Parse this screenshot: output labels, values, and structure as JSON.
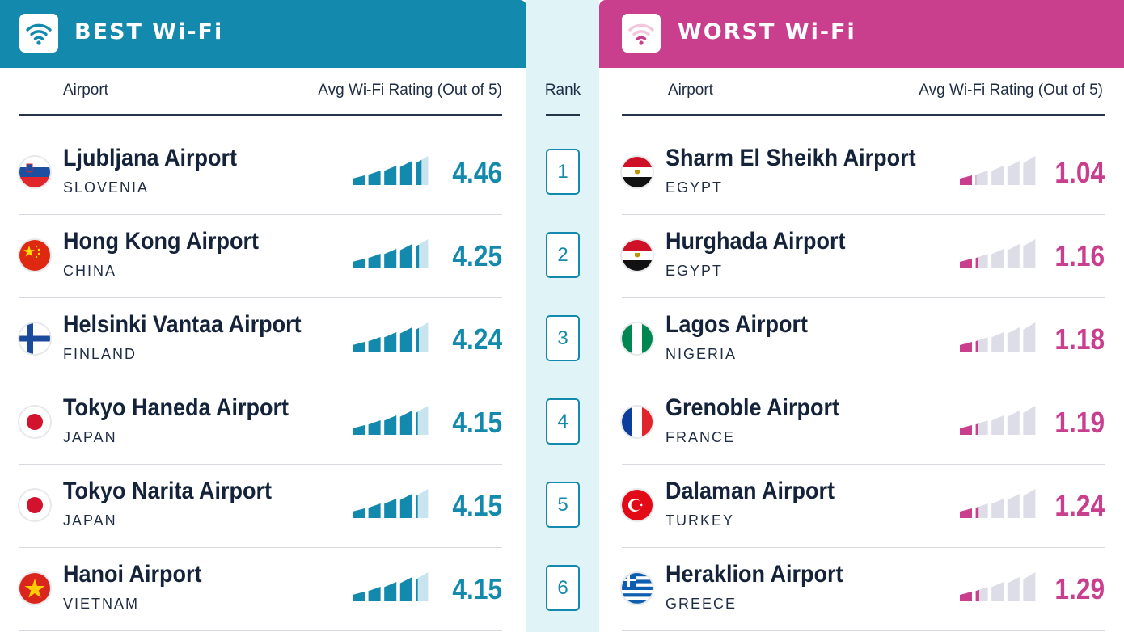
{
  "best": {
    "title": "BEST Wi-Fi",
    "icon": "wifi-icon",
    "col_airport": "Airport",
    "col_rating": "Avg Wi-Fi Rating (Out of 5)",
    "accent": "#138aad"
  },
  "worst": {
    "title": "WORST Wi-Fi",
    "icon": "wifi-icon",
    "col_airport": "Airport",
    "col_rating": "Avg Wi-Fi Rating (Out of 5)",
    "accent": "#c93f8e"
  },
  "rank_col": {
    "title": "Rank",
    "ranks": [
      "1",
      "2",
      "3",
      "4",
      "5",
      "6"
    ]
  },
  "chart_data": {
    "type": "table",
    "columns": [
      "Rank",
      "Airport",
      "Country",
      "Avg Wi-Fi Rating (Out of 5)"
    ],
    "max_rating": 5,
    "best": [
      {
        "rank": 1,
        "airport": "Ljubljana Airport",
        "country": "SLOVENIA",
        "rating": 4.46,
        "label": "4.46",
        "flag": "slovenia-flag"
      },
      {
        "rank": 2,
        "airport": "Hong Kong Airport",
        "country": "CHINA",
        "rating": 4.25,
        "label": "4.25",
        "flag": "china-flag"
      },
      {
        "rank": 3,
        "airport": "Helsinki Vantaa Airport",
        "country": "FINLAND",
        "rating": 4.24,
        "label": "4.24",
        "flag": "finland-flag"
      },
      {
        "rank": 4,
        "airport": "Tokyo Haneda Airport",
        "country": "JAPAN",
        "rating": 4.15,
        "label": "4.15",
        "flag": "japan-flag"
      },
      {
        "rank": 5,
        "airport": "Tokyo Narita Airport",
        "country": "JAPAN",
        "rating": 4.15,
        "label": "4.15",
        "flag": "japan-flag"
      },
      {
        "rank": 6,
        "airport": "Hanoi Airport",
        "country": "VIETNAM",
        "rating": 4.15,
        "label": "4.15",
        "flag": "vietnam-flag"
      }
    ],
    "worst": [
      {
        "rank": 1,
        "airport": "Sharm El Sheikh Airport",
        "country": "EGYPT",
        "rating": 1.04,
        "label": "1.04",
        "flag": "egypt-flag"
      },
      {
        "rank": 2,
        "airport": "Hurghada Airport",
        "country": "EGYPT",
        "rating": 1.16,
        "label": "1.16",
        "flag": "egypt-flag"
      },
      {
        "rank": 3,
        "airport": "Lagos Airport",
        "country": "NIGERIA",
        "rating": 1.18,
        "label": "1.18",
        "flag": "nigeria-flag"
      },
      {
        "rank": 4,
        "airport": "Grenoble Airport",
        "country": "FRANCE",
        "rating": 1.19,
        "label": "1.19",
        "flag": "france-flag"
      },
      {
        "rank": 5,
        "airport": "Dalaman Airport",
        "country": "TURKEY",
        "rating": 1.24,
        "label": "1.24",
        "flag": "turkey-flag"
      },
      {
        "rank": 6,
        "airport": "Heraklion Airport",
        "country": "GREECE",
        "rating": 1.29,
        "label": "1.29",
        "flag": "greece-flag"
      }
    ]
  },
  "colors": {
    "best_accent": "#138aad",
    "worst_accent": "#c93f8e",
    "rank_background": "#e0f4f8",
    "bar_inactive": "#dcdde6",
    "bar_inactive_best": "#c8e4ee"
  }
}
